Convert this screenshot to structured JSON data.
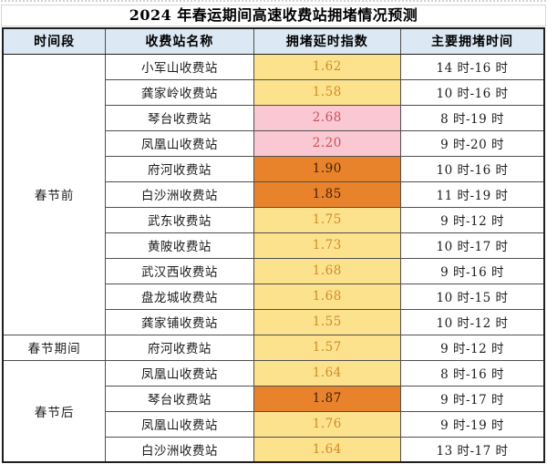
{
  "title": "2024 年春运期间高速收费站拥堵情况预测",
  "table": {
    "headers": [
      "时间段",
      "收费站名称",
      "拥堵延时指数",
      "主要拥堵时间"
    ],
    "groups": [
      {
        "period": "春节前",
        "rows": [
          {
            "station": "小军山收费站",
            "index": "1.62",
            "level": "yellow",
            "time": "14 时-16 时"
          },
          {
            "station": "龚家岭收费站",
            "index": "1.58",
            "level": "yellow",
            "time": "10 时-16 时"
          },
          {
            "station": "琴台收费站",
            "index": "2.68",
            "level": "pink",
            "time": "8 时-19 时"
          },
          {
            "station": "凤凰山收费站",
            "index": "2.20",
            "level": "pink",
            "time": "9 时-20 时"
          },
          {
            "station": "府河收费站",
            "index": "1.90",
            "level": "orange",
            "time": "10 时-16 时"
          },
          {
            "station": "白沙洲收费站",
            "index": "1.85",
            "level": "orange",
            "time": "11 时-19 时"
          },
          {
            "station": "武东收费站",
            "index": "1.75",
            "level": "yellow",
            "time": "9 时-12 时"
          },
          {
            "station": "黄陂收费站",
            "index": "1.73",
            "level": "yellow",
            "time": "10 时-17 时"
          },
          {
            "station": "武汉西收费站",
            "index": "1.68",
            "level": "yellow",
            "time": "9 时-16 时"
          },
          {
            "station": "盘龙城收费站",
            "index": "1.68",
            "level": "yellow",
            "time": "10 时-15 时"
          },
          {
            "station": "龚家铺收费站",
            "index": "1.55",
            "level": "yellow",
            "time": "10 时-12 时"
          }
        ]
      },
      {
        "period": "春节期间",
        "rows": [
          {
            "station": "府河收费站",
            "index": "1.57",
            "level": "yellow",
            "time": "9 时-12 时"
          }
        ]
      },
      {
        "period": "春节后",
        "rows": [
          {
            "station": "凤凰山收费站",
            "index": "1.64",
            "level": "yellow",
            "time": "8 时-16 时"
          },
          {
            "station": "琴台收费站",
            "index": "1.87",
            "level": "orange",
            "time": "9 时-17 时"
          },
          {
            "station": "凤凰山收费站",
            "index": "1.76",
            "level": "yellow",
            "time": "9 时-19 时"
          },
          {
            "station": "白沙洲收费站",
            "index": "1.64",
            "level": "yellow",
            "time": "13 时-17 时"
          }
        ]
      }
    ]
  },
  "colors": {
    "header_bg": "#dce9f5",
    "yellow_bg": "#fce28d",
    "yellow_text": "#d08c2c",
    "pink_bg": "#f9c8d2",
    "pink_text": "#c75260",
    "orange_bg": "#e8832c",
    "orange_text": "#44210a",
    "border_outer": "#1f1f1f",
    "border_inner": "#4f4f4f",
    "body_text": "#1c1c1c"
  }
}
